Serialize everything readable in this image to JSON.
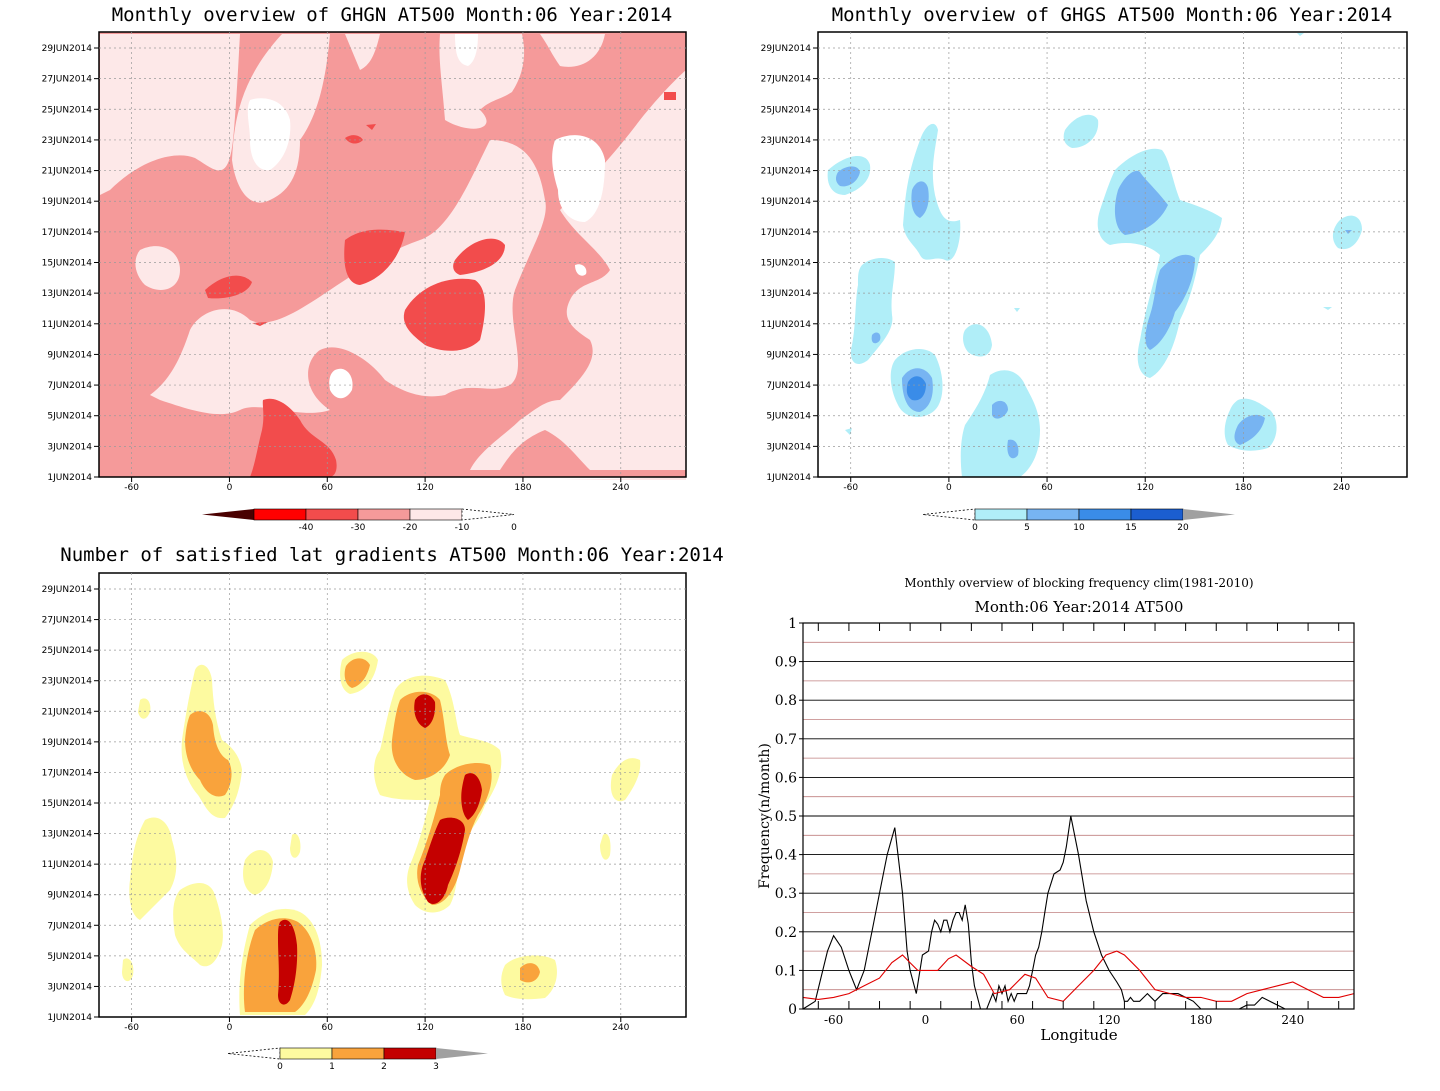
{
  "dates": [
    "1JUN2014",
    "3JUN2014",
    "5JUN2014",
    "7JUN2014",
    "9JUN2014",
    "11JUN2014",
    "13JUN2014",
    "15JUN2014",
    "17JUN2014",
    "19JUN2014",
    "21JUN2014",
    "23JUN2014",
    "25JUN2014",
    "27JUN2014",
    "29JUN2014"
  ],
  "lon_ticks": [
    "-60",
    "0",
    "60",
    "120",
    "180",
    "240"
  ],
  "panels": [
    {
      "title": "Monthly overview of GHGN AT500 Month:06 Year:2014",
      "legend_labels": [
        "-40",
        "-30",
        "-20",
        "-10",
        "0"
      ],
      "colors": [
        "#4a0000",
        "#ff0000",
        "#f24c4c",
        "#f59a9a",
        "#fde8e8"
      ],
      "base": "#f59a9a"
    },
    {
      "title": "Monthly overview of GHGS AT500 Month:06 Year:2014",
      "legend_labels": [
        "0",
        "5",
        "10",
        "15",
        "20"
      ],
      "colors": [
        "#b0eef8",
        "#77b4f2",
        "#3a8ce8",
        "#1b5ed0",
        "#a0a0a0"
      ]
    },
    {
      "title": "Number of satisfied lat gradients AT500 Month:06 Year:2014",
      "legend_labels": [
        "0",
        "1",
        "2",
        "3"
      ],
      "colors": [
        "#fdfaa0",
        "#f9a33c",
        "#c40000",
        "#a0a0a0"
      ]
    }
  ],
  "chart_data": {
    "type": "line",
    "title": "Monthly overview of blocking frequency clim(1981-2010)",
    "subtitle": "Month:06 Year:2014  AT500",
    "xlabel": "Longitude",
    "ylabel": "Frequency(n/month)",
    "x_ticks": [
      "-60",
      "0",
      "60",
      "120",
      "180",
      "240"
    ],
    "y_ticks": [
      "0",
      "0.1",
      "0.2",
      "0.3",
      "0.4",
      "0.5",
      "0.6",
      "0.7",
      "0.8",
      "0.9",
      "1"
    ],
    "xlim": [
      -80,
      280
    ],
    "ylim": [
      0,
      1
    ],
    "series": [
      {
        "color": "#000000",
        "x": [
          -80,
          -72,
          -64,
          -60,
          -55,
          -50,
          -45,
          -40,
          -35,
          -30,
          -25,
          -20,
          -15,
          -12,
          -10,
          -6,
          -2,
          2,
          4,
          6,
          8,
          10,
          12,
          14,
          16,
          18,
          20,
          22,
          24,
          26,
          28,
          30,
          32,
          34,
          36,
          38,
          40,
          42,
          44,
          46,
          48,
          50,
          52,
          54,
          56,
          58,
          60,
          62,
          64,
          66,
          68,
          70,
          72,
          74,
          76,
          78,
          80,
          84,
          88,
          90,
          92,
          95,
          100,
          105,
          110,
          115,
          120,
          125,
          128,
          130,
          132,
          134,
          136,
          140,
          145,
          150,
          155,
          160,
          165,
          170,
          175,
          180,
          185,
          190,
          195,
          200,
          205,
          210,
          215,
          220,
          225,
          230,
          235,
          240,
          245,
          250,
          255,
          260,
          265,
          270,
          275,
          280
        ],
        "y": [
          0,
          0.02,
          0.15,
          0.19,
          0.16,
          0.1,
          0.05,
          0.1,
          0.2,
          0.3,
          0.4,
          0.47,
          0.3,
          0.15,
          0.1,
          0.04,
          0.14,
          0.15,
          0.2,
          0.23,
          0.22,
          0.2,
          0.23,
          0.23,
          0.2,
          0.23,
          0.25,
          0.25,
          0.23,
          0.27,
          0.22,
          0.12,
          0.06,
          0.03,
          0,
          0,
          0,
          0.02,
          0.04,
          0.02,
          0.06,
          0.04,
          0.06,
          0.02,
          0.04,
          0.02,
          0.04,
          0.04,
          0.04,
          0.04,
          0.06,
          0.1,
          0.14,
          0.16,
          0.2,
          0.25,
          0.3,
          0.35,
          0.36,
          0.38,
          0.42,
          0.5,
          0.4,
          0.28,
          0.2,
          0.14,
          0.1,
          0.07,
          0.05,
          0.02,
          0.02,
          0.03,
          0.02,
          0.02,
          0.04,
          0.02,
          0.04,
          0.04,
          0.04,
          0.03,
          0.02,
          0,
          0,
          0,
          0,
          0,
          0,
          0.01,
          0.01,
          0.03,
          0.02,
          0.01,
          0,
          0,
          0,
          0,
          0,
          0,
          0,
          0,
          0,
          0
        ]
      },
      {
        "color": "#e00000",
        "x": [
          -80,
          -70,
          -60,
          -50,
          -40,
          -30,
          -22,
          -15,
          -10,
          -5,
          0,
          8,
          15,
          20,
          30,
          38,
          45,
          55,
          65,
          72,
          80,
          90,
          100,
          110,
          118,
          125,
          130,
          135,
          140,
          150,
          160,
          170,
          180,
          190,
          200,
          210,
          220,
          230,
          240,
          250,
          260,
          270,
          280
        ],
        "y": [
          0.03,
          0.025,
          0.03,
          0.04,
          0.06,
          0.08,
          0.12,
          0.14,
          0.12,
          0.1,
          0.1,
          0.1,
          0.13,
          0.14,
          0.11,
          0.09,
          0.04,
          0.05,
          0.09,
          0.08,
          0.03,
          0.02,
          0.06,
          0.1,
          0.14,
          0.15,
          0.14,
          0.12,
          0.1,
          0.05,
          0.04,
          0.03,
          0.03,
          0.02,
          0.02,
          0.04,
          0.05,
          0.06,
          0.07,
          0.05,
          0.03,
          0.03,
          0.04
        ]
      }
    ]
  }
}
